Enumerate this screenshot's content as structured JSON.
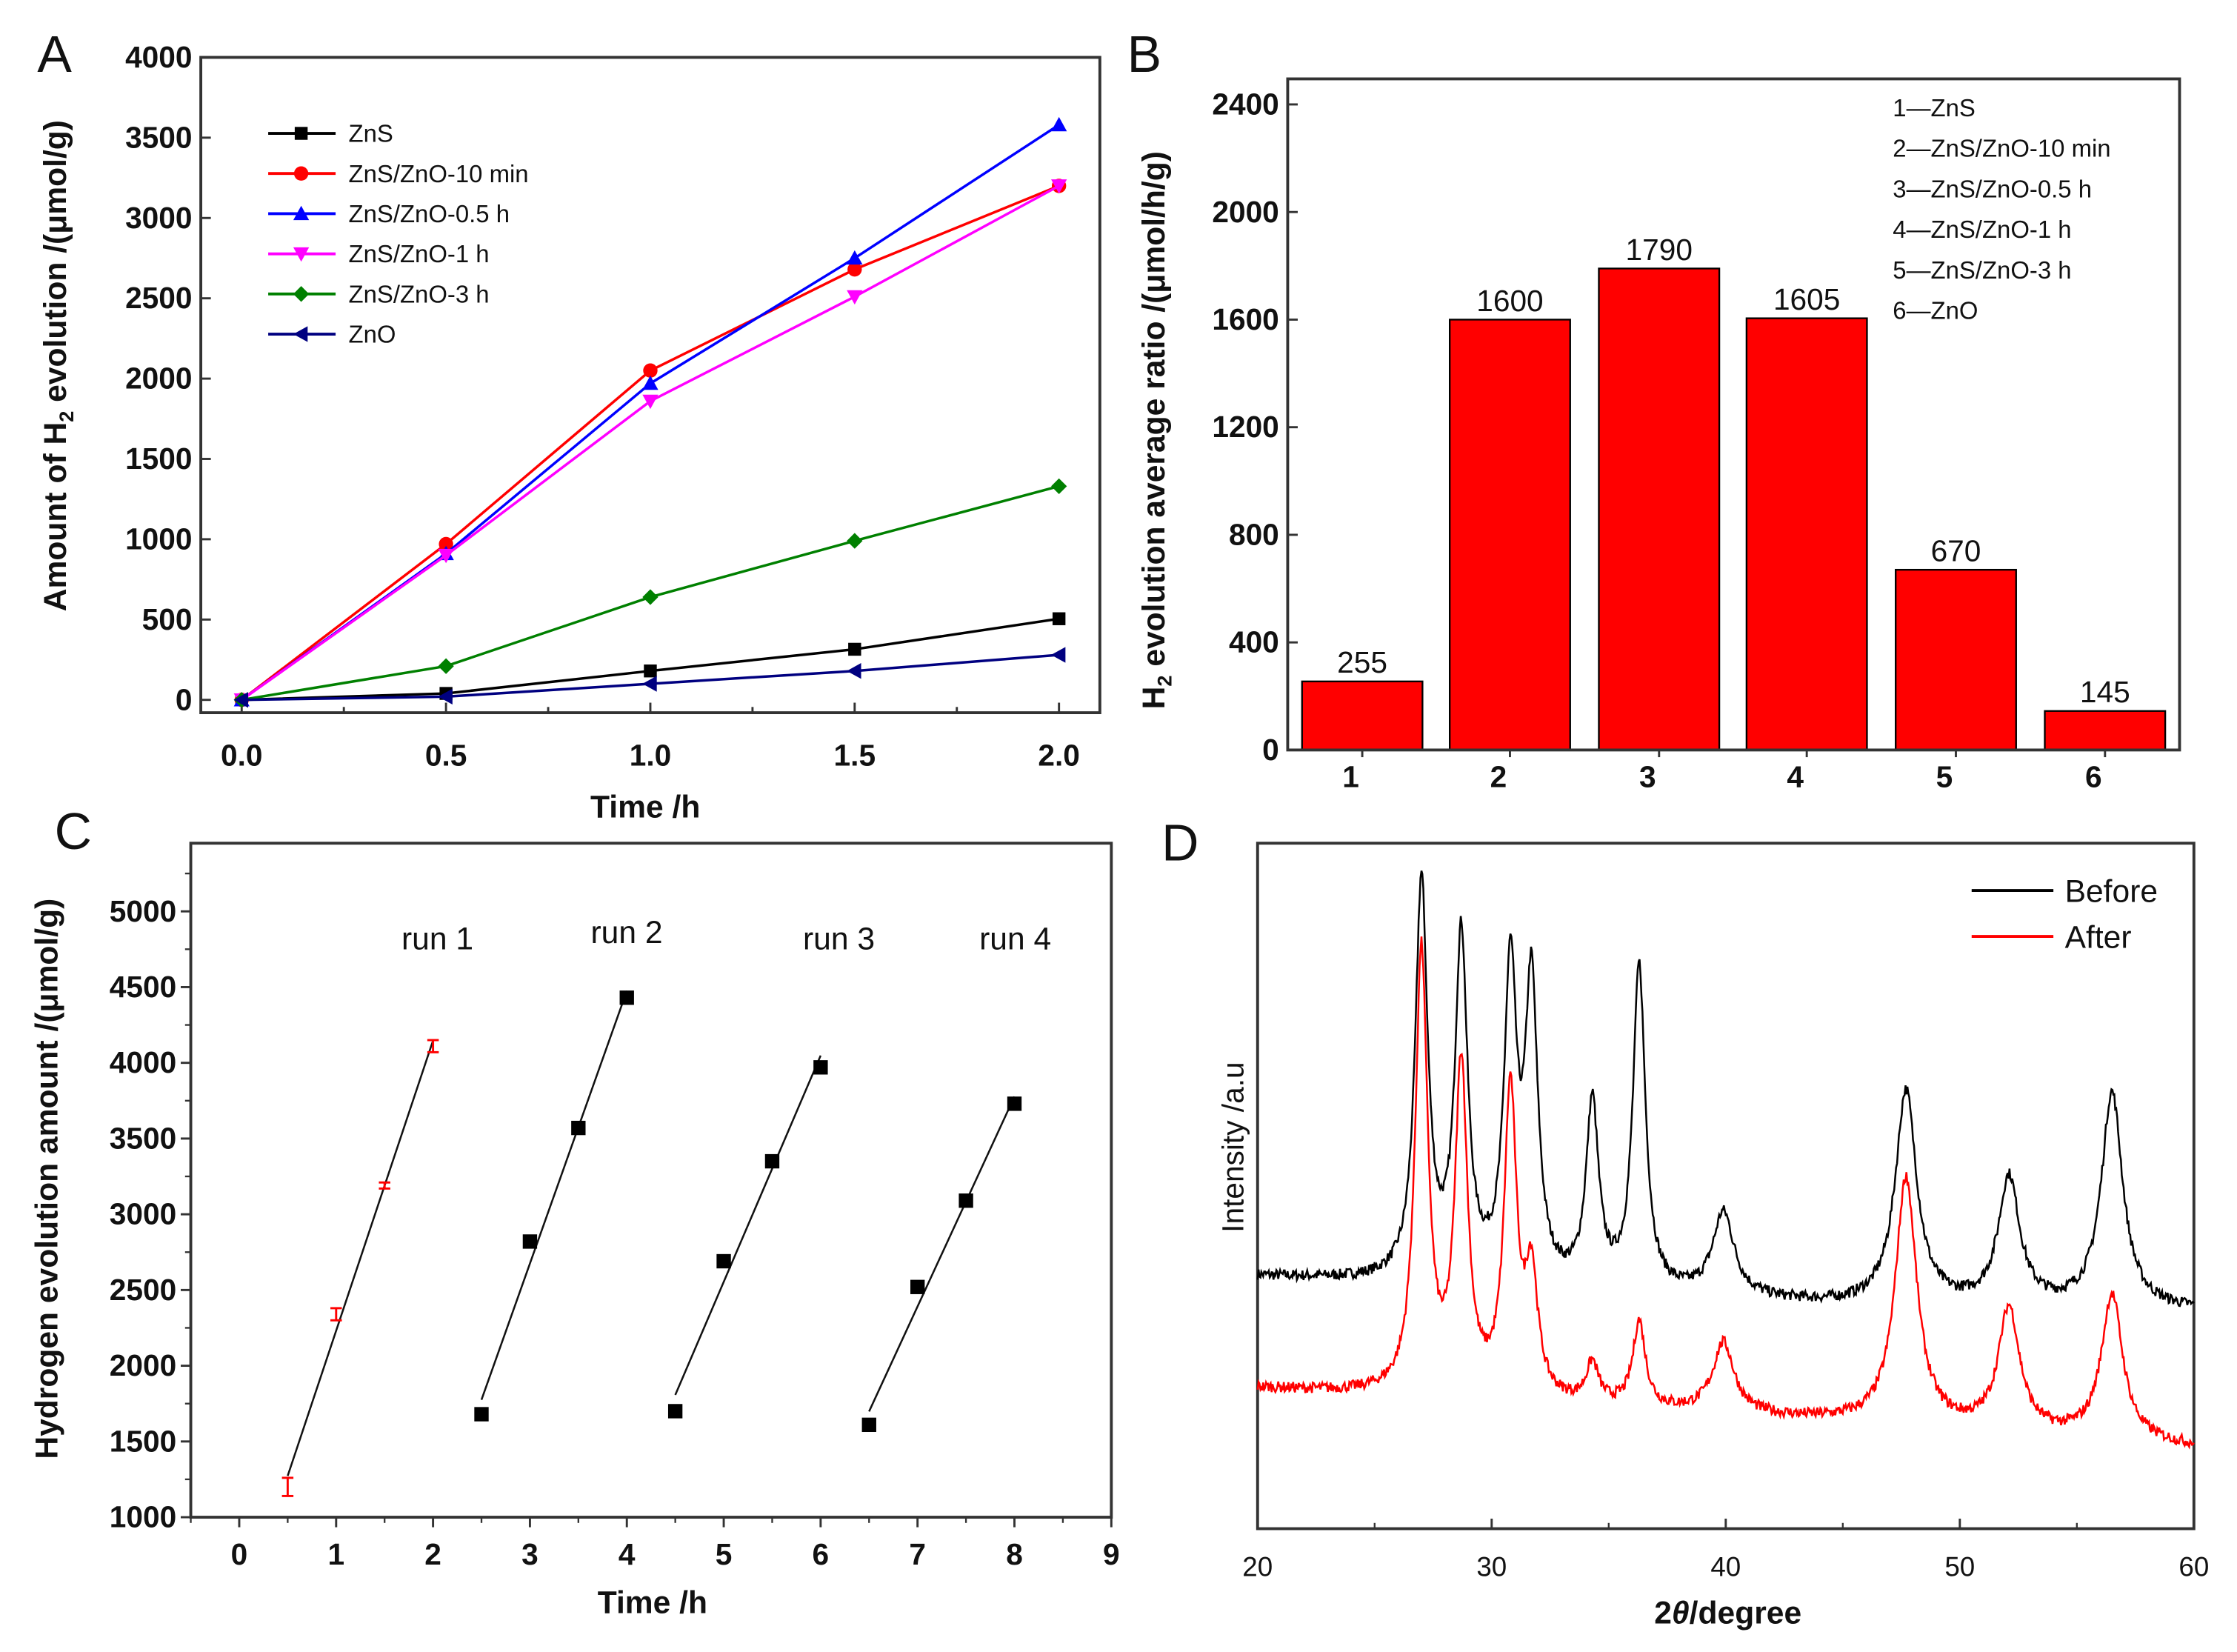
{
  "chart_data": [
    {
      "panel": "A",
      "type": "line",
      "xlabel": "Time /h",
      "ylabel_parts": [
        "Amount of H",
        "2",
        " evolution /(μmol/g)"
      ],
      "xlim": [
        -0.1,
        2.1
      ],
      "ylim": [
        -80,
        4000
      ],
      "xticks": [
        0.0,
        0.5,
        1.0,
        1.5,
        2.0
      ],
      "xtick_labels": [
        "0.0",
        "0.5",
        "1.0",
        "1.5",
        "2.0"
      ],
      "yticks": [
        0,
        500,
        1000,
        1500,
        2000,
        2500,
        3000,
        3500,
        4000
      ],
      "legend_placement": "top-left",
      "x": [
        0,
        0.5,
        1.0,
        1.5,
        2.0
      ],
      "series": [
        {
          "name": "ZnS",
          "color": "#000000",
          "marker": "square",
          "values": [
            0,
            40,
            180,
            315,
            505
          ]
        },
        {
          "name": "ZnS/ZnO-10 min",
          "color": "#ff0000",
          "marker": "circle",
          "values": [
            0,
            970,
            2050,
            2680,
            3200
          ]
        },
        {
          "name": "ZnS/ZnO-0.5 h",
          "color": "#0000ff",
          "marker": "triangle-up",
          "values": [
            0,
            910,
            1970,
            2750,
            3580
          ]
        },
        {
          "name": "ZnS/ZnO-1 h",
          "color": "#ff00ff",
          "marker": "triangle-down",
          "values": [
            0,
            900,
            1860,
            2510,
            3200
          ]
        },
        {
          "name": "ZnS/ZnO-3 h",
          "color": "#008000",
          "marker": "diamond",
          "values": [
            0,
            210,
            640,
            990,
            1330
          ]
        },
        {
          "name": "ZnO",
          "color": "#000080",
          "marker": "triangle-left",
          "values": [
            0,
            20,
            100,
            180,
            280
          ]
        }
      ]
    },
    {
      "panel": "B",
      "type": "bar",
      "ylabel_parts": [
        "H",
        "2",
        " evolution average ratio  /(μmol/h/g)"
      ],
      "categories": [
        "1",
        "2",
        "3",
        "4",
        "5",
        "6"
      ],
      "values": [
        255,
        1600,
        1790,
        1605,
        670,
        145
      ],
      "value_labels": [
        "255",
        "1600",
        "1790",
        "1605",
        "670",
        "145"
      ],
      "bar_color": "#ff0000",
      "ylim": [
        0,
        2500
      ],
      "yticks": [
        0,
        400,
        800,
        1200,
        1600,
        2000,
        2400
      ],
      "legend_placement": "top-right",
      "legend": [
        "1—ZnS",
        "2—ZnS/ZnO-10 min",
        "3—ZnS/ZnO-0.5 h",
        "4—ZnS/ZnO-1 h",
        "5—ZnS/ZnO-3 h",
        "6—ZnO"
      ]
    },
    {
      "panel": "C",
      "type": "scatter",
      "xlabel": "Time /h",
      "ylabel": "Hydrogen evolution amount /(μmol/g)",
      "xlim": [
        -0.5,
        9
      ],
      "ylim": [
        1000,
        5450
      ],
      "xticks": [
        0,
        1,
        2,
        3,
        4,
        5,
        6,
        7,
        8,
        9
      ],
      "yticks": [
        1000,
        1500,
        2000,
        2500,
        3000,
        3500,
        4000,
        4500,
        5000
      ],
      "series": [
        {
          "name": "run 1",
          "color": "#ff0000",
          "marker": "errorbar",
          "x": [
            0.5,
            1,
            1.5,
            2
          ],
          "values": [
            1200,
            2340,
            3190,
            4110
          ],
          "error": [
            60,
            40,
            20,
            40
          ]
        },
        {
          "name": "run 2",
          "color": "#000000",
          "marker": "square",
          "x": [
            2.5,
            3,
            3.5,
            4
          ],
          "values": [
            1680,
            2820,
            3570,
            4430
          ]
        },
        {
          "name": "run 3",
          "color": "#000000",
          "marker": "square",
          "x": [
            4.5,
            5,
            5.5,
            6
          ],
          "values": [
            1700,
            2690,
            3350,
            3970
          ]
        },
        {
          "name": "run 4",
          "color": "#000000",
          "marker": "square",
          "x": [
            6.5,
            7,
            7.5,
            8
          ],
          "values": [
            1610,
            2520,
            3090,
            3730
          ]
        }
      ],
      "run_label_values": [
        4750,
        4790,
        4750,
        4750
      ]
    },
    {
      "panel": "D",
      "type": "line",
      "xlabel_parts": [
        "2",
        "θ",
        "/degree"
      ],
      "ylabel": "Intensity /a.u",
      "xlim": [
        20,
        60
      ],
      "ylim": [
        0,
        100
      ],
      "xticks": [
        20,
        30,
        40,
        50,
        60
      ],
      "legend_placement": "top-right",
      "series": [
        {
          "name": "Before",
          "color": "#000000",
          "baseline": [
            [
              20,
              36.8
            ],
            [
              45,
              32.5
            ],
            [
              60,
              31.8
            ]
          ],
          "peaks": [
            [
              27.0,
              93.5
            ],
            [
              28.7,
              85.1
            ],
            [
              30.8,
              79.7
            ],
            [
              31.7,
              77.6
            ],
            [
              34.3,
              61.1
            ],
            [
              36.3,
              81.2
            ],
            [
              39.9,
              45.6
            ],
            [
              47.7,
              63.6
            ],
            [
              52.1,
              50.8
            ],
            [
              56.5,
              63.4
            ]
          ]
        },
        {
          "name": "After",
          "color": "#ff0000",
          "baseline": [
            [
              20,
              20.5
            ],
            [
              45,
              15.5
            ],
            [
              60,
              11.9
            ]
          ],
          "peaks": [
            [
              27.0,
              83.5
            ],
            [
              28.7,
              66.5
            ],
            [
              30.8,
              62.8
            ],
            [
              31.7,
              35.6
            ],
            [
              34.3,
              23.4
            ],
            [
              36.3,
              29.7
            ],
            [
              39.9,
              26.8
            ],
            [
              47.7,
              51.0
            ],
            [
              52.1,
              31.8
            ],
            [
              56.5,
              33.9
            ]
          ]
        }
      ]
    }
  ],
  "panel_letters": [
    "A",
    "B",
    "C",
    "D"
  ]
}
